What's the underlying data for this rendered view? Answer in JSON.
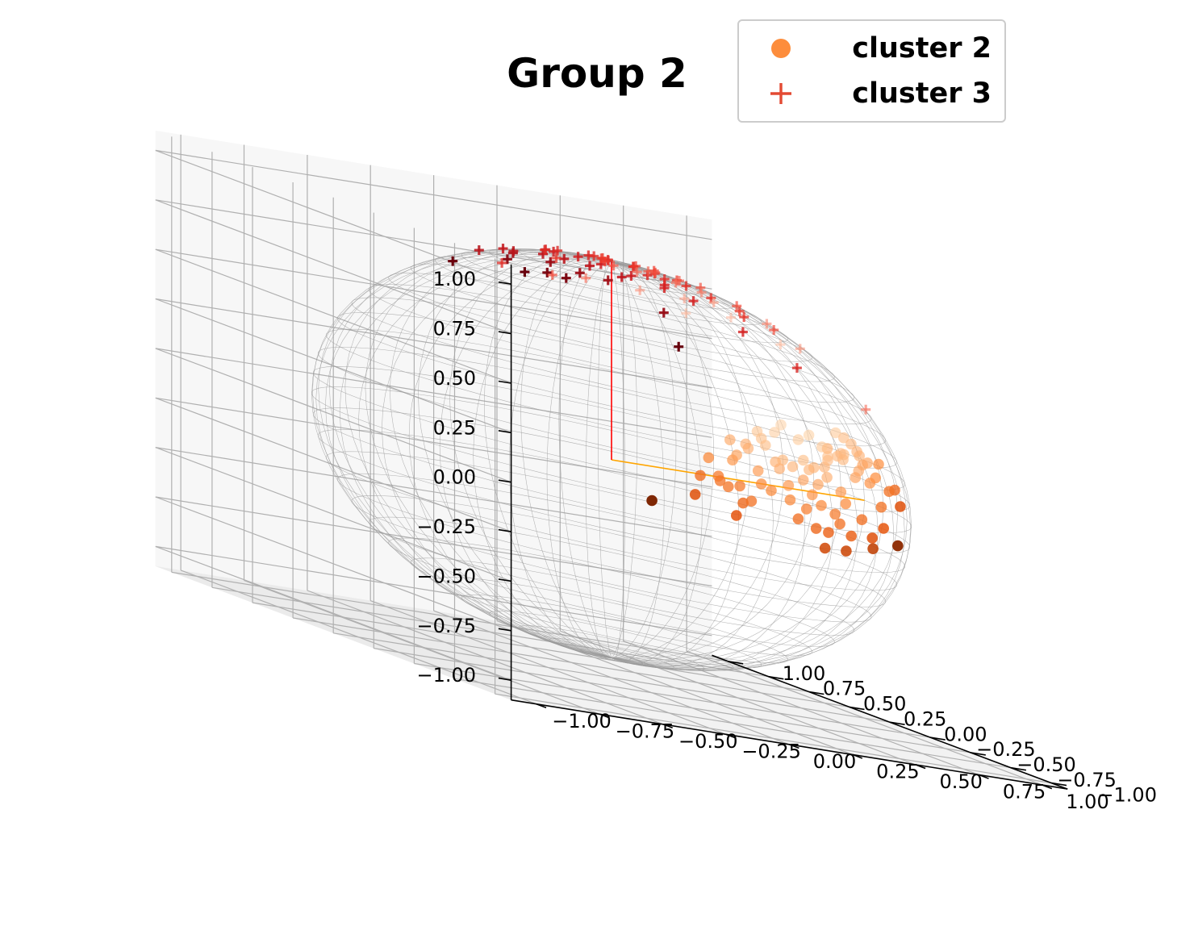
{
  "chart_data": {
    "type": "scatter",
    "projection": "3d",
    "title": "Group 2",
    "xlabel": "",
    "ylabel": "",
    "zlabel": "",
    "xlim": [
      -1.1,
      1.1
    ],
    "ylim": [
      -1.1,
      1.1
    ],
    "zlim": [
      -1.1,
      1.1
    ],
    "x_ticks": [
      "−1.00",
      "−0.75",
      "−0.50",
      "−0.25",
      "0.00",
      "0.25",
      "0.50",
      "0.75",
      "1.00"
    ],
    "y_ticks": [
      "−1.00",
      "−0.75",
      "−0.50",
      "−0.25",
      "0.00",
      "0.25",
      "0.50",
      "0.75",
      "1.00"
    ],
    "z_ticks": [
      "−1.00",
      "−0.75",
      "−0.50",
      "−0.25",
      "0.00",
      "0.25",
      "0.50",
      "0.75",
      "1.00"
    ],
    "grid": true,
    "legend_position": "top-right",
    "view": {
      "elev": 25,
      "azim": 20
    },
    "unit_sphere_wireframe": true,
    "series": [
      {
        "name": "cluster 2",
        "marker": "circle",
        "color": "#fd8d3c",
        "shading": "Oranges",
        "mean_direction": [
          1.0,
          0.0,
          0.0
        ],
        "mean_direction_color": "#ffa500",
        "points": [
          [
            0.95,
            0.05,
            0.29
          ],
          [
            0.93,
            0.12,
            0.21
          ],
          [
            0.98,
            -0.02,
            0.18
          ],
          [
            0.97,
            0.08,
            0.2
          ],
          [
            0.99,
            0.04,
            0.1
          ],
          [
            0.97,
            0.18,
            0.14
          ],
          [
            0.98,
            -0.1,
            0.14
          ],
          [
            0.96,
            0.25,
            0.08
          ],
          [
            0.96,
            0.02,
            0.27
          ],
          [
            0.99,
            0.1,
            -0.05
          ],
          [
            0.99,
            -0.05,
            0.1
          ],
          [
            0.97,
            0.2,
            0.1
          ],
          [
            0.98,
            0.15,
            -0.12
          ],
          [
            0.96,
            -0.15,
            0.22
          ],
          [
            0.97,
            0.1,
            0.2
          ],
          [
            0.93,
            0.3,
            0.2
          ],
          [
            0.99,
            0.0,
            -0.1
          ],
          [
            0.97,
            -0.2,
            0.1
          ],
          [
            0.95,
            0.28,
            -0.14
          ],
          [
            0.98,
            0.05,
            -0.2
          ],
          [
            0.94,
            0.35,
            0.05
          ],
          [
            0.99,
            -0.12,
            0.0
          ],
          [
            0.96,
            0.16,
            -0.22
          ],
          [
            0.98,
            0.1,
            0.17
          ],
          [
            0.98,
            -0.08,
            -0.17
          ],
          [
            0.94,
            0.25,
            0.24
          ],
          [
            0.97,
            0.22,
            -0.1
          ],
          [
            0.99,
            0.13,
            0.0
          ],
          [
            0.96,
            -0.25,
            0.12
          ],
          [
            0.95,
            0.3,
            0.1
          ],
          [
            0.98,
            -0.05,
            0.2
          ],
          [
            0.96,
            0.2,
            0.2
          ],
          [
            0.94,
            0.15,
            -0.3
          ],
          [
            0.97,
            0.24,
            0.0
          ],
          [
            0.98,
            0.0,
            0.22
          ],
          [
            0.96,
            0.05,
            -0.28
          ],
          [
            0.98,
            -0.15,
            -0.1
          ],
          [
            0.95,
            -0.3,
            0.05
          ],
          [
            0.97,
            0.18,
            0.16
          ],
          [
            0.93,
            0.35,
            -0.12
          ],
          [
            0.98,
            0.2,
            0.05
          ],
          [
            0.99,
            0.02,
            0.14
          ],
          [
            0.95,
            0.22,
            -0.22
          ],
          [
            0.94,
            -0.3,
            -0.15
          ],
          [
            0.96,
            0.28,
            0.06
          ],
          [
            0.92,
            0.4,
            0.02
          ],
          [
            0.97,
            -0.1,
            -0.22
          ],
          [
            0.98,
            0.12,
            -0.16
          ],
          [
            0.95,
            0.1,
            0.3
          ],
          [
            0.93,
            0.3,
            -0.2
          ],
          [
            0.96,
            0.26,
            -0.06
          ],
          [
            0.97,
            0.12,
            0.18
          ],
          [
            0.9,
            0.42,
            -0.1
          ],
          [
            0.88,
            0.45,
            0.15
          ],
          [
            0.85,
            0.5,
            0.1
          ],
          [
            0.86,
            0.48,
            -0.18
          ],
          [
            0.84,
            0.52,
            -0.12
          ],
          [
            0.82,
            0.55,
            0.1
          ],
          [
            0.84,
            0.5,
            -0.2
          ],
          [
            0.83,
            0.55,
            0.0
          ],
          [
            0.8,
            0.58,
            -0.12
          ],
          [
            0.9,
            0.4,
            0.2
          ],
          [
            0.88,
            0.45,
            -0.08
          ],
          [
            0.92,
            0.38,
            0.07
          ],
          [
            0.86,
            0.5,
            0.08
          ],
          [
            0.78,
            0.62,
            -0.02
          ],
          [
            0.8,
            0.59,
            -0.1
          ],
          [
            0.76,
            0.64,
            -0.12
          ],
          [
            0.82,
            0.56,
            -0.14
          ],
          [
            0.9,
            0.36,
            0.25
          ],
          [
            0.87,
            0.46,
            0.18
          ],
          [
            0.84,
            0.54,
            0.03
          ],
          [
            0.74,
            0.64,
            -0.22
          ],
          [
            0.95,
            0.3,
            0.0
          ],
          [
            0.93,
            0.36,
            -0.05
          ],
          [
            0.88,
            0.47,
            -0.02
          ],
          [
            0.91,
            0.41,
            0.05
          ],
          [
            0.89,
            0.44,
            0.12
          ],
          [
            0.82,
            0.51,
            -0.27
          ],
          [
            0.97,
            0.0,
            0.24
          ],
          [
            0.62,
            0.72,
            -0.3
          ]
        ]
      },
      {
        "name": "cluster 3",
        "marker": "plus",
        "color": "#e34a33",
        "shading": "Reds",
        "mean_direction": [
          0.0,
          0.0,
          1.0
        ],
        "mean_direction_color": "#ff0000",
        "points": [
          [
            0.05,
            0.1,
            0.99
          ],
          [
            -0.1,
            0.05,
            0.99
          ],
          [
            0.12,
            -0.08,
            0.99
          ],
          [
            -0.15,
            -0.1,
            0.98
          ],
          [
            0.2,
            0.05,
            0.98
          ],
          [
            -0.05,
            -0.2,
            0.98
          ],
          [
            0.08,
            0.18,
            0.98
          ],
          [
            -0.22,
            0.08,
            0.97
          ],
          [
            0.18,
            -0.18,
            0.97
          ],
          [
            -0.12,
            0.22,
            0.97
          ],
          [
            0.25,
            0.12,
            0.96
          ],
          [
            -0.28,
            -0.06,
            0.96
          ],
          [
            0.03,
            -0.28,
            0.96
          ],
          [
            0.14,
            0.26,
            0.95
          ],
          [
            -0.3,
            0.14,
            0.94
          ],
          [
            0.32,
            -0.05,
            0.95
          ],
          [
            -0.18,
            -0.26,
            0.95
          ],
          [
            0.24,
            -0.24,
            0.94
          ],
          [
            -0.06,
            0.32,
            0.95
          ],
          [
            0.35,
            0.15,
            0.92
          ],
          [
            -0.35,
            -0.15,
            0.92
          ],
          [
            0.1,
            -0.35,
            0.93
          ],
          [
            -0.25,
            0.28,
            0.93
          ],
          [
            0.28,
            0.28,
            0.92
          ],
          [
            -0.38,
            0.05,
            0.92
          ],
          [
            0.38,
            -0.18,
            0.91
          ],
          [
            0.0,
            0.02,
            1.0
          ],
          [
            0.06,
            -0.04,
            1.0
          ],
          [
            -0.04,
            0.08,
            1.0
          ],
          [
            0.1,
            0.02,
            0.99
          ],
          [
            -0.08,
            -0.06,
            0.99
          ],
          [
            0.02,
            0.14,
            0.99
          ],
          [
            0.16,
            0.1,
            0.98
          ],
          [
            -0.14,
            0.14,
            0.98
          ],
          [
            0.04,
            -0.16,
            0.99
          ],
          [
            -0.2,
            -0.02,
            0.98
          ],
          [
            0.22,
            -0.06,
            0.97
          ],
          [
            0.1,
            0.22,
            0.97
          ],
          [
            -0.1,
            -0.22,
            0.97
          ],
          [
            0.3,
            0.05,
            0.95
          ],
          [
            0.2,
            0.3,
            0.93
          ],
          [
            -0.32,
            -0.22,
            0.92
          ],
          [
            0.42,
            0.1,
            0.9
          ],
          [
            -0.3,
            0.35,
            0.89
          ],
          [
            0.05,
            0.42,
            0.9
          ],
          [
            -0.42,
            -0.12,
            0.9
          ],
          [
            0.3,
            -0.35,
            0.89
          ],
          [
            0.5,
            0.15,
            0.85
          ],
          [
            -0.1,
            -0.48,
            0.87
          ],
          [
            0.45,
            -0.3,
            0.84
          ],
          [
            0.55,
            -0.1,
            0.83
          ],
          [
            0.6,
            0.2,
            0.78
          ],
          [
            0.65,
            -0.15,
            0.74
          ],
          [
            0.7,
            0.05,
            0.71
          ],
          [
            -0.15,
            -0.65,
            0.74
          ],
          [
            0.35,
            -0.6,
            0.72
          ],
          [
            0.25,
            0.55,
            0.8
          ],
          [
            -0.5,
            0.2,
            0.84
          ],
          [
            0.2,
            -0.5,
            0.84
          ],
          [
            0.15,
            0.6,
            0.78
          ],
          [
            0.4,
            0.45,
            0.8
          ],
          [
            -0.05,
            0.6,
            0.8
          ],
          [
            0.05,
            -0.25,
            0.97
          ],
          [
            -0.26,
            0.2,
            0.94
          ],
          [
            0.26,
            0.18,
            0.95
          ],
          [
            0.12,
            -0.14,
            0.98
          ],
          [
            -0.06,
            0.24,
            0.97
          ],
          [
            -0.24,
            -0.18,
            0.95
          ],
          [
            0.34,
            -0.26,
            0.9
          ],
          [
            0.48,
            0.3,
            0.82
          ],
          [
            0.55,
            0.4,
            0.73
          ],
          [
            0.75,
            -0.4,
            0.53
          ]
        ]
      }
    ]
  }
}
